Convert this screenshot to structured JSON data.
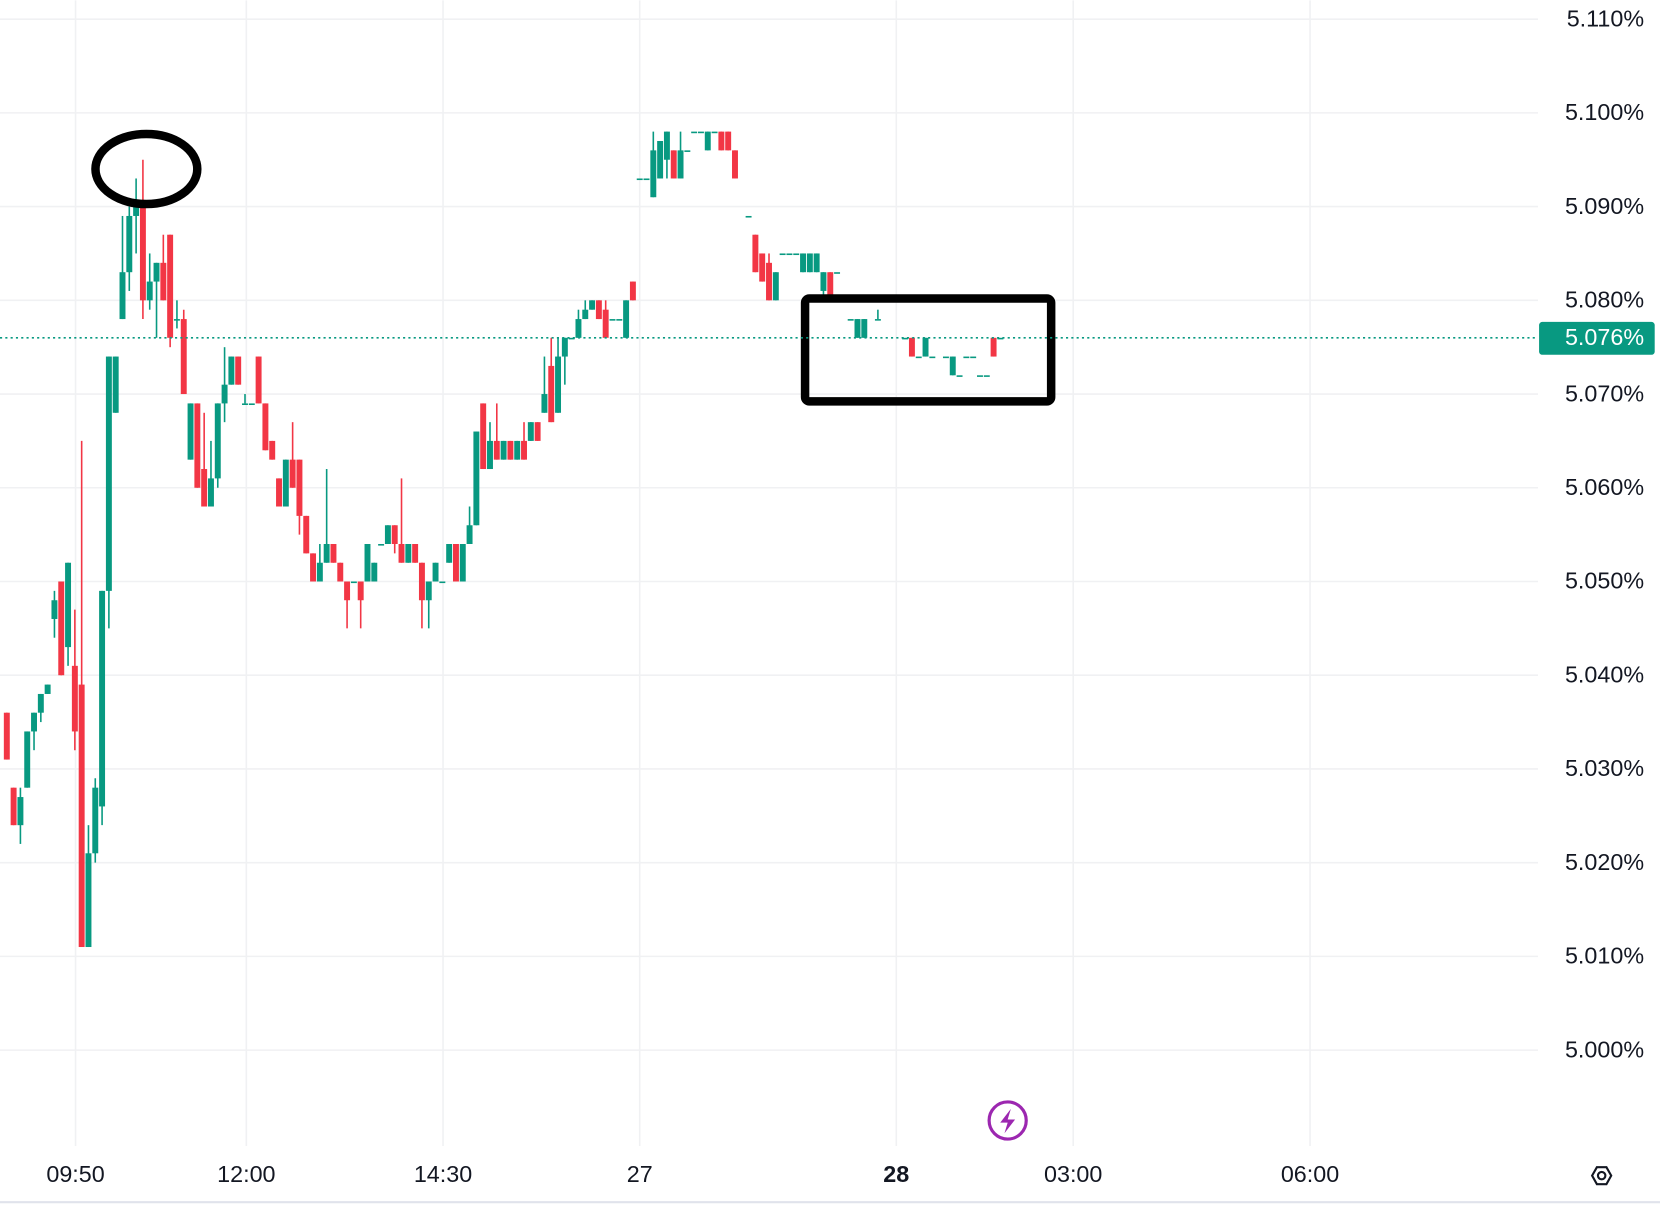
{
  "chart_data": {
    "type": "candlestick",
    "x": [
      1,
      2,
      3,
      4,
      5,
      6,
      7,
      8,
      9,
      10,
      11,
      12,
      13,
      14,
      15,
      16,
      17,
      18,
      19,
      20,
      21,
      22,
      23,
      24,
      25,
      26,
      27,
      28,
      29,
      30,
      31,
      32,
      33,
      34,
      35,
      36,
      37,
      38,
      39,
      40,
      41,
      42,
      43,
      44,
      45,
      46,
      47,
      48,
      49,
      50,
      51,
      52,
      53,
      54,
      55,
      56,
      57,
      58,
      59,
      60,
      61,
      62,
      63,
      64,
      65,
      66,
      67,
      68,
      69,
      70,
      71,
      72,
      73,
      74,
      75,
      76,
      77,
      78,
      79,
      80,
      81,
      82,
      83,
      84,
      85,
      86,
      87,
      88,
      89,
      90,
      91,
      92,
      93,
      94,
      95,
      96,
      97,
      98,
      99,
      100,
      101,
      102,
      103,
      104,
      105,
      106,
      107,
      108,
      110,
      111,
      112,
      113,
      114,
      115,
      116,
      117,
      118,
      119,
      120,
      121,
      122,
      123,
      125,
      126,
      127,
      129,
      133,
      134,
      135,
      136,
      137,
      139,
      140,
      141,
      142,
      143,
      144,
      145,
      146,
      147
    ],
    "open": [
      5.036,
      5.028,
      5.024,
      5.028,
      5.034,
      5.036,
      5.038,
      5.046,
      5.05,
      5.043,
      5.041,
      5.039,
      5.011,
      5.021,
      5.026,
      5.049,
      5.068,
      5.078,
      5.083,
      5.089,
      5.09,
      5.08,
      5.082,
      5.084,
      5.087,
      5.078,
      5.078,
      5.063,
      5.069,
      5.062,
      5.058,
      5.061,
      5.069,
      5.071,
      5.074,
      5.069,
      5.069,
      5.074,
      5.069,
      5.065,
      5.061,
      5.058,
      5.063,
      5.063,
      5.057,
      5.053,
      5.05,
      5.052,
      5.054,
      5.052,
      5.05,
      5.05,
      5.05,
      5.05,
      5.05,
      5.054,
      5.054,
      5.056,
      5.054,
      5.052,
      5.054,
      5.052,
      5.048,
      5.05,
      5.05,
      5.052,
      5.054,
      5.05,
      5.054,
      5.056,
      5.069,
      5.062,
      5.065,
      5.063,
      5.065,
      5.063,
      5.065,
      5.065,
      5.067,
      5.068,
      5.073,
      5.068,
      5.074,
      5.076,
      5.076,
      5.078,
      5.079,
      5.08,
      5.079,
      5.078,
      5.078,
      5.076,
      5.082,
      5.093,
      5.093,
      5.091,
      5.093,
      5.095,
      5.096,
      5.093,
      5.096,
      5.098,
      5.098,
      5.096,
      5.098,
      5.098,
      5.098,
      5.096,
      5.089,
      5.087,
      5.085,
      5.084,
      5.08,
      5.085,
      5.085,
      5.085,
      5.083,
      5.083,
      5.083,
      5.081,
      5.083,
      5.083,
      5.078,
      5.076,
      5.076,
      5.078,
      5.076,
      5.076,
      5.074,
      5.074,
      5.074,
      5.074,
      5.072,
      5.072,
      5.074,
      5.074,
      5.072,
      5.072,
      5.076,
      5.076
    ],
    "high": [
      5.036,
      5.028,
      5.028,
      5.034,
      5.036,
      5.038,
      5.039,
      5.049,
      5.05,
      5.052,
      5.047,
      5.065,
      5.024,
      5.029,
      5.049,
      5.074,
      5.074,
      5.089,
      5.09,
      5.093,
      5.095,
      5.085,
      5.084,
      5.087,
      5.087,
      5.08,
      5.079,
      5.069,
      5.069,
      5.068,
      5.065,
      5.069,
      5.075,
      5.074,
      5.074,
      5.07,
      5.069,
      5.074,
      5.069,
      5.065,
      5.061,
      5.063,
      5.067,
      5.063,
      5.057,
      5.053,
      5.054,
      5.062,
      5.054,
      5.052,
      5.05,
      5.05,
      5.05,
      5.054,
      5.052,
      5.054,
      5.056,
      5.056,
      5.061,
      5.054,
      5.054,
      5.052,
      5.05,
      5.052,
      5.05,
      5.054,
      5.054,
      5.054,
      5.058,
      5.066,
      5.069,
      5.067,
      5.069,
      5.065,
      5.065,
      5.065,
      5.067,
      5.067,
      5.067,
      5.074,
      5.076,
      5.076,
      5.076,
      5.076,
      5.079,
      5.08,
      5.08,
      5.08,
      5.08,
      5.078,
      5.078,
      5.08,
      5.082,
      5.093,
      5.093,
      5.098,
      5.097,
      5.098,
      5.096,
      5.098,
      5.096,
      5.098,
      5.098,
      5.098,
      5.098,
      5.098,
      5.098,
      5.096,
      5.089,
      5.087,
      5.085,
      5.085,
      5.083,
      5.085,
      5.085,
      5.085,
      5.085,
      5.085,
      5.085,
      5.083,
      5.083,
      5.083,
      5.078,
      5.078,
      5.078,
      5.079,
      5.076,
      5.076,
      5.074,
      5.076,
      5.074,
      5.074,
      5.074,
      5.072,
      5.074,
      5.074,
      5.072,
      5.072,
      5.076,
      5.076
    ],
    "low": [
      5.031,
      5.024,
      5.022,
      5.028,
      5.032,
      5.035,
      5.038,
      5.044,
      5.04,
      5.041,
      5.032,
      5.011,
      5.011,
      5.02,
      5.024,
      5.045,
      5.068,
      5.078,
      5.081,
      5.085,
      5.078,
      5.079,
      5.076,
      5.08,
      5.075,
      5.077,
      5.07,
      5.063,
      5.06,
      5.058,
      5.058,
      5.06,
      5.067,
      5.071,
      5.071,
      5.069,
      5.069,
      5.069,
      5.064,
      5.063,
      5.058,
      5.058,
      5.06,
      5.055,
      5.053,
      5.05,
      5.05,
      5.052,
      5.052,
      5.05,
      5.045,
      5.05,
      5.045,
      5.05,
      5.05,
      5.054,
      5.054,
      5.053,
      5.052,
      5.052,
      5.052,
      5.045,
      5.045,
      5.05,
      5.05,
      5.052,
      5.05,
      5.05,
      5.054,
      5.056,
      5.062,
      5.062,
      5.063,
      5.063,
      5.063,
      5.063,
      5.063,
      5.065,
      5.065,
      5.068,
      5.067,
      5.068,
      5.071,
      5.076,
      5.076,
      5.078,
      5.079,
      5.078,
      5.076,
      5.078,
      5.078,
      5.076,
      5.08,
      5.093,
      5.093,
      5.091,
      5.093,
      5.093,
      5.093,
      5.093,
      5.096,
      5.098,
      5.098,
      5.096,
      5.098,
      5.096,
      5.096,
      5.093,
      5.089,
      5.083,
      5.082,
      5.08,
      5.08,
      5.085,
      5.085,
      5.085,
      5.083,
      5.083,
      5.083,
      5.08,
      5.08,
      5.083,
      5.078,
      5.076,
      5.076,
      5.078,
      5.076,
      5.074,
      5.074,
      5.074,
      5.074,
      5.074,
      5.072,
      5.072,
      5.074,
      5.074,
      5.072,
      5.072,
      5.074,
      5.076
    ],
    "close": [
      5.031,
      5.024,
      5.027,
      5.034,
      5.036,
      5.038,
      5.039,
      5.048,
      5.04,
      5.052,
      5.034,
      5.011,
      5.021,
      5.028,
      5.049,
      5.074,
      5.074,
      5.083,
      5.089,
      5.09,
      5.08,
      5.082,
      5.084,
      5.08,
      5.076,
      5.078,
      5.07,
      5.069,
      5.06,
      5.058,
      5.061,
      5.069,
      5.071,
      5.074,
      5.071,
      5.069,
      5.069,
      5.069,
      5.064,
      5.063,
      5.058,
      5.063,
      5.06,
      5.057,
      5.053,
      5.05,
      5.052,
      5.054,
      5.052,
      5.05,
      5.048,
      5.05,
      5.048,
      5.054,
      5.052,
      5.054,
      5.056,
      5.054,
      5.052,
      5.054,
      5.052,
      5.048,
      5.05,
      5.052,
      5.05,
      5.054,
      5.05,
      5.054,
      5.056,
      5.066,
      5.062,
      5.065,
      5.063,
      5.065,
      5.063,
      5.065,
      5.063,
      5.067,
      5.065,
      5.07,
      5.067,
      5.074,
      5.076,
      5.076,
      5.078,
      5.079,
      5.08,
      5.078,
      5.076,
      5.078,
      5.078,
      5.08,
      5.08,
      5.093,
      5.093,
      5.096,
      5.097,
      5.098,
      5.093,
      5.096,
      5.096,
      5.098,
      5.098,
      5.098,
      5.098,
      5.096,
      5.096,
      5.093,
      5.089,
      5.083,
      5.082,
      5.08,
      5.083,
      5.085,
      5.085,
      5.085,
      5.085,
      5.085,
      5.085,
      5.083,
      5.08,
      5.083,
      5.078,
      5.078,
      5.078,
      5.078,
      5.076,
      5.074,
      5.074,
      5.076,
      5.074,
      5.074,
      5.074,
      5.072,
      5.074,
      5.074,
      5.072,
      5.072,
      5.074,
      5.076
    ],
    "up_color": "#089981",
    "down_color": "#f23645",
    "xlim": [
      0,
      226
    ],
    "ylim": [
      4.99,
      5.112
    ],
    "xticks": [
      {
        "value": 11.1,
        "label": "09:50"
      },
      {
        "value": 36.2,
        "label": "12:00"
      },
      {
        "value": 65.1,
        "label": "14:30"
      },
      {
        "value": 94,
        "label": "27"
      },
      {
        "value": 131.7,
        "label": "28",
        "bold": true
      },
      {
        "value": 157.7,
        "label": "03:00"
      },
      {
        "value": 192.5,
        "label": "06:00"
      }
    ],
    "yticks": [
      {
        "value": 5.0,
        "label": "5.000%"
      },
      {
        "value": 5.01,
        "label": "5.010%"
      },
      {
        "value": 5.02,
        "label": "5.020%"
      },
      {
        "value": 5.03,
        "label": "5.030%"
      },
      {
        "value": 5.04,
        "label": "5.040%"
      },
      {
        "value": 5.05,
        "label": "5.050%"
      },
      {
        "value": 5.06,
        "label": "5.060%"
      },
      {
        "value": 5.07,
        "label": "5.070%"
      },
      {
        "value": 5.08,
        "label": "5.080%"
      },
      {
        "value": 5.09,
        "label": "5.090%"
      },
      {
        "value": 5.1,
        "label": "5.100%"
      },
      {
        "value": 5.11,
        "label": "5.110%"
      }
    ],
    "last_price": {
      "value": 5.076,
      "label": "5.076%"
    },
    "grid": true
  }
}
